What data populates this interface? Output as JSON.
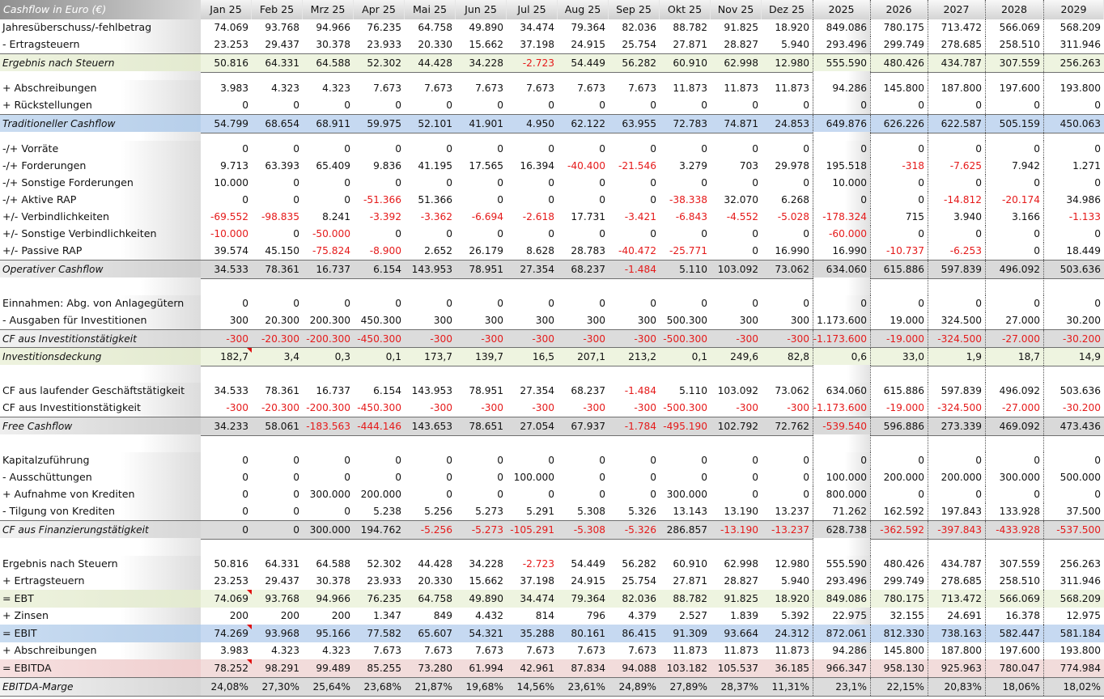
{
  "sheet": {
    "title": "Cashflow in Euro (€)",
    "columns": [
      "Jan 25",
      "Feb 25",
      "Mrz 25",
      "Apr 25",
      "Mai 25",
      "Jun 25",
      "Jul 25",
      "Aug 25",
      "Sep 25",
      "Okt 25",
      "Nov 25",
      "Dez 25",
      "2025",
      "2026",
      "2027",
      "2028",
      "2029"
    ],
    "rows": [
      {
        "label": "Jahresüberschuss/-fehlbetrag",
        "style": "none",
        "values": [
          "74.069",
          "93.768",
          "94.966",
          "76.235",
          "64.758",
          "49.890",
          "34.474",
          "79.364",
          "82.036",
          "88.782",
          "91.825",
          "18.920",
          "849.086",
          "780.175",
          "713.472",
          "566.069",
          "568.209"
        ]
      },
      {
        "label": "- Ertragsteuern",
        "style": "none",
        "values": [
          "23.253",
          "29.437",
          "30.378",
          "23.933",
          "20.330",
          "15.662",
          "37.198",
          "24.915",
          "25.754",
          "27.871",
          "28.827",
          "5.940",
          "293.496",
          "299.749",
          "278.685",
          "258.510",
          "311.946"
        ]
      },
      {
        "label": "Ergebnis nach Steuern",
        "style": "green",
        "sum": true,
        "values": [
          "50.816",
          "64.331",
          "64.588",
          "52.302",
          "44.428",
          "34.228",
          "-2.723",
          "54.449",
          "56.282",
          "60.910",
          "62.998",
          "12.980",
          "555.590",
          "480.426",
          "434.787",
          "307.559",
          "256.263"
        ]
      },
      {
        "spacer": true
      },
      {
        "label": "+ Abschreibungen",
        "style": "none",
        "values": [
          "3.983",
          "4.323",
          "4.323",
          "7.673",
          "7.673",
          "7.673",
          "7.673",
          "7.673",
          "7.673",
          "11.873",
          "11.873",
          "11.873",
          "94.286",
          "145.800",
          "187.800",
          "197.600",
          "193.800"
        ]
      },
      {
        "label": "+ Rückstellungen",
        "style": "none",
        "values": [
          "0",
          "0",
          "0",
          "0",
          "0",
          "0",
          "0",
          "0",
          "0",
          "0",
          "0",
          "0",
          "0",
          "0",
          "0",
          "0",
          "0"
        ]
      },
      {
        "label": "Traditioneller Cashflow",
        "style": "blue",
        "sum": true,
        "values": [
          "54.799",
          "68.654",
          "68.911",
          "59.975",
          "52.101",
          "41.901",
          "4.950",
          "62.122",
          "63.955",
          "72.783",
          "74.871",
          "24.853",
          "649.876",
          "626.226",
          "622.587",
          "505.159",
          "450.063"
        ]
      },
      {
        "spacer": true
      },
      {
        "label": "-/+ Vorräte",
        "style": "none",
        "values": [
          "0",
          "0",
          "0",
          "0",
          "0",
          "0",
          "0",
          "0",
          "0",
          "0",
          "0",
          "0",
          "0",
          "0",
          "0",
          "0",
          "0"
        ]
      },
      {
        "label": "-/+ Forderungen",
        "style": "none",
        "values": [
          "9.713",
          "63.393",
          "65.409",
          "9.836",
          "41.195",
          "17.565",
          "16.394",
          "-40.400",
          "-21.546",
          "3.279",
          "703",
          "29.978",
          "195.518",
          "-318",
          "-7.625",
          "7.942",
          "1.271"
        ]
      },
      {
        "label": "-/+ Sonstige Forderungen",
        "style": "none",
        "values": [
          "10.000",
          "0",
          "0",
          "0",
          "0",
          "0",
          "0",
          "0",
          "0",
          "0",
          "0",
          "0",
          "10.000",
          "0",
          "0",
          "0",
          "0"
        ]
      },
      {
        "label": "-/+ Aktive RAP",
        "style": "none",
        "values": [
          "0",
          "0",
          "0",
          "-51.366",
          "51.366",
          "0",
          "0",
          "0",
          "0",
          "-38.338",
          "32.070",
          "6.268",
          "0",
          "0",
          "-14.812",
          "-20.174",
          "34.986"
        ]
      },
      {
        "label": "+/- Verbindlichkeiten",
        "style": "none",
        "values": [
          "-69.552",
          "-98.835",
          "8.241",
          "-3.392",
          "-3.362",
          "-6.694",
          "-2.618",
          "17.731",
          "-3.421",
          "-6.843",
          "-4.552",
          "-5.028",
          "-178.324",
          "715",
          "3.940",
          "3.166",
          "-1.133"
        ]
      },
      {
        "label": "+/- Sonstige Verbindlichkeiten",
        "style": "none",
        "values": [
          "-10.000",
          "0",
          "-50.000",
          "0",
          "0",
          "0",
          "0",
          "0",
          "0",
          "0",
          "0",
          "0",
          "-60.000",
          "0",
          "0",
          "0",
          "0"
        ]
      },
      {
        "label": "+/- Passive RAP",
        "style": "none",
        "values": [
          "39.574",
          "45.150",
          "-75.824",
          "-8.900",
          "2.652",
          "26.179",
          "8.628",
          "28.783",
          "-40.472",
          "-25.771",
          "0",
          "16.990",
          "16.990",
          "-10.737",
          "-6.253",
          "0",
          "18.449"
        ]
      },
      {
        "label": "Operativer Cashflow",
        "style": "gray",
        "sum": true,
        "values": [
          "34.533",
          "78.361",
          "16.737",
          "6.154",
          "143.953",
          "78.951",
          "27.354",
          "68.237",
          "-1.484",
          "5.110",
          "103.092",
          "73.062",
          "634.060",
          "615.886",
          "597.839",
          "496.092",
          "503.636"
        ]
      },
      {
        "spacer": true,
        "tall": true
      },
      {
        "label": "Einnahmen: Abg. von Anlagegütern",
        "style": "none",
        "values": [
          "0",
          "0",
          "0",
          "0",
          "0",
          "0",
          "0",
          "0",
          "0",
          "0",
          "0",
          "0",
          "0",
          "0",
          "0",
          "0",
          "0"
        ]
      },
      {
        "label": "- Ausgaben für Investitionen",
        "style": "none",
        "values": [
          "300",
          "20.300",
          "200.300",
          "450.300",
          "300",
          "300",
          "300",
          "300",
          "300",
          "500.300",
          "300",
          "300",
          "1.173.600",
          "19.000",
          "324.500",
          "27.000",
          "30.200"
        ]
      },
      {
        "label": "CF aus Investitionstätigkeit",
        "style": "lgray",
        "sum": true,
        "values": [
          "-300",
          "-20.300",
          "-200.300",
          "-450.300",
          "-300",
          "-300",
          "-300",
          "-300",
          "-300",
          "-500.300",
          "-300",
          "-300",
          "-1.173.600",
          "-19.000",
          "-324.500",
          "-27.000",
          "-30.200"
        ]
      },
      {
        "label": "Investitionsdeckung",
        "style": "green",
        "sum": true,
        "tri": true,
        "values": [
          "182,7",
          "3,4",
          "0,3",
          "0,1",
          "173,7",
          "139,7",
          "16,5",
          "207,1",
          "213,2",
          "0,1",
          "249,6",
          "82,8",
          "0,6",
          "33,0",
          "1,9",
          "18,7",
          "14,9"
        ]
      },
      {
        "spacer": true,
        "tall": true
      },
      {
        "label": "CF aus laufender Geschäftstätigkeit",
        "style": "none",
        "values": [
          "34.533",
          "78.361",
          "16.737",
          "6.154",
          "143.953",
          "78.951",
          "27.354",
          "68.237",
          "-1.484",
          "5.110",
          "103.092",
          "73.062",
          "634.060",
          "615.886",
          "597.839",
          "496.092",
          "503.636"
        ]
      },
      {
        "label": "CF aus Investitionstätigkeit",
        "style": "none",
        "values": [
          "-300",
          "-20.300",
          "-200.300",
          "-450.300",
          "-300",
          "-300",
          "-300",
          "-300",
          "-300",
          "-500.300",
          "-300",
          "-300",
          "-1.173.600",
          "-19.000",
          "-324.500",
          "-27.000",
          "-30.200"
        ]
      },
      {
        "label": "Free Cashflow",
        "style": "gray",
        "sum": true,
        "values": [
          "34.233",
          "58.061",
          "-183.563",
          "-444.146",
          "143.653",
          "78.651",
          "27.054",
          "67.937",
          "-1.784",
          "-495.190",
          "102.792",
          "72.762",
          "-539.540",
          "596.886",
          "273.339",
          "469.092",
          "473.436"
        ]
      },
      {
        "spacer": true,
        "tall": true
      },
      {
        "label": "Kapitalzuführung",
        "style": "none",
        "values": [
          "0",
          "0",
          "0",
          "0",
          "0",
          "0",
          "0",
          "0",
          "0",
          "0",
          "0",
          "0",
          "0",
          "0",
          "0",
          "0",
          "0"
        ]
      },
      {
        "label": "- Ausschüttungen",
        "style": "none",
        "values": [
          "0",
          "0",
          "0",
          "0",
          "0",
          "0",
          "100.000",
          "0",
          "0",
          "0",
          "0",
          "0",
          "100.000",
          "200.000",
          "200.000",
          "300.000",
          "500.000"
        ]
      },
      {
        "label": "+ Aufnahme von Krediten",
        "style": "none",
        "values": [
          "0",
          "0",
          "300.000",
          "200.000",
          "0",
          "0",
          "0",
          "0",
          "0",
          "300.000",
          "0",
          "0",
          "800.000",
          "0",
          "0",
          "0",
          "0"
        ]
      },
      {
        "label": "- Tilgung von Krediten",
        "style": "none",
        "values": [
          "0",
          "0",
          "0",
          "5.238",
          "5.256",
          "5.273",
          "5.291",
          "5.308",
          "5.326",
          "13.143",
          "13.190",
          "13.237",
          "71.262",
          "162.592",
          "197.843",
          "133.928",
          "37.500"
        ]
      },
      {
        "label": "CF aus Finanzierungstätigkeit",
        "style": "lgray",
        "sum": true,
        "values": [
          "0",
          "0",
          "300.000",
          "194.762",
          "-5.256",
          "-5.273",
          "-105.291",
          "-5.308",
          "-5.326",
          "286.857",
          "-13.190",
          "-13.237",
          "628.738",
          "-362.592",
          "-397.843",
          "-433.928",
          "-537.500"
        ]
      },
      {
        "spacer": true,
        "tall": true
      },
      {
        "label": "Ergebnis nach  Steuern",
        "style": "none",
        "values": [
          "50.816",
          "64.331",
          "64.588",
          "52.302",
          "44.428",
          "34.228",
          "-2.723",
          "54.449",
          "56.282",
          "60.910",
          "62.998",
          "12.980",
          "555.590",
          "480.426",
          "434.787",
          "307.559",
          "256.263"
        ]
      },
      {
        "label": "+ Ertragsteuern",
        "style": "none",
        "values": [
          "23.253",
          "29.437",
          "30.378",
          "23.933",
          "20.330",
          "15.662",
          "37.198",
          "24.915",
          "25.754",
          "27.871",
          "28.827",
          "5.940",
          "293.496",
          "299.749",
          "278.685",
          "258.510",
          "311.946"
        ]
      },
      {
        "label": "= EBT",
        "style": "green",
        "nosum": true,
        "tri": true,
        "values": [
          "74.069",
          "93.768",
          "94.966",
          "76.235",
          "64.758",
          "49.890",
          "34.474",
          "79.364",
          "82.036",
          "88.782",
          "91.825",
          "18.920",
          "849.086",
          "780.175",
          "713.472",
          "566.069",
          "568.209"
        ]
      },
      {
        "label": "+ Zinsen",
        "style": "none",
        "values": [
          "200",
          "200",
          "200",
          "1.347",
          "849",
          "4.432",
          "814",
          "796",
          "4.379",
          "2.527",
          "1.839",
          "5.392",
          "22.975",
          "32.155",
          "24.691",
          "16.378",
          "12.975"
        ]
      },
      {
        "label": "= EBIT",
        "style": "blue",
        "nosum": true,
        "tri": true,
        "values": [
          "74.269",
          "93.968",
          "95.166",
          "77.582",
          "65.607",
          "54.321",
          "35.288",
          "80.161",
          "86.415",
          "91.309",
          "93.664",
          "24.312",
          "872.061",
          "812.330",
          "738.163",
          "582.447",
          "581.184"
        ]
      },
      {
        "label": "+ Abschreibungen",
        "style": "none",
        "values": [
          "3.983",
          "4.323",
          "4.323",
          "7.673",
          "7.673",
          "7.673",
          "7.673",
          "7.673",
          "7.673",
          "11.873",
          "11.873",
          "11.873",
          "94.286",
          "145.800",
          "187.800",
          "197.600",
          "193.800"
        ]
      },
      {
        "label": "= EBITDA",
        "style": "pink",
        "nosum": true,
        "tri": true,
        "values": [
          "78.252",
          "98.291",
          "99.489",
          "85.255",
          "73.280",
          "61.994",
          "42.961",
          "87.834",
          "94.088",
          "103.182",
          "105.537",
          "36.185",
          "966.347",
          "958.130",
          "925.963",
          "780.047",
          "774.984"
        ]
      },
      {
        "label": "EBITDA-Marge",
        "style": "lgray",
        "sum": true,
        "values": [
          "24,08%",
          "27,30%",
          "25,64%",
          "23,68%",
          "21,87%",
          "19,68%",
          "14,56%",
          "23,61%",
          "24,89%",
          "27,89%",
          "28,37%",
          "11,31%",
          "23,1%",
          "22,15%",
          "20,83%",
          "18,06%",
          "18,02%"
        ]
      }
    ]
  }
}
